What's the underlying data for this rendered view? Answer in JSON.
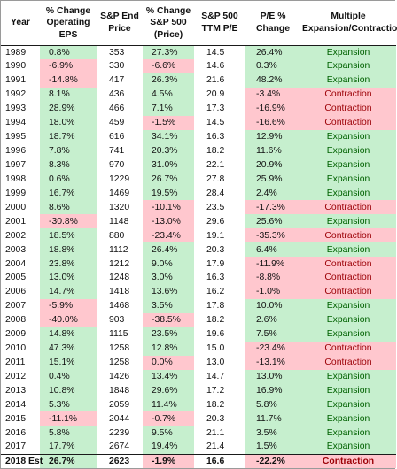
{
  "headers": {
    "year": "Year",
    "eps_change": "% Change Operating EPS",
    "sp_end_price": "S&P End Price",
    "sp_change": "% Change S&P 500 (Price)",
    "ttm_pe": "S&P 500 TTM P/E",
    "pe_change": "P/E % Change",
    "multiple": "Multiple Expansion/Contraction"
  },
  "rows": [
    {
      "year": "1989",
      "eps": "0.8%",
      "price": "353",
      "sp": "27.3%",
      "pe": "14.5",
      "pechg": "26.4%",
      "mult": "Expansion",
      "eps_s": "pos",
      "sp_s": "pos",
      "pechg_s": "pos",
      "mult_s": "pos"
    },
    {
      "year": "1990",
      "eps": "-6.9%",
      "price": "330",
      "sp": "-6.6%",
      "pe": "14.6",
      "pechg": "0.3%",
      "mult": "Expansion",
      "eps_s": "neg",
      "sp_s": "neg",
      "pechg_s": "pos",
      "mult_s": "pos"
    },
    {
      "year": "1991",
      "eps": "-14.8%",
      "price": "417",
      "sp": "26.3%",
      "pe": "21.6",
      "pechg": "48.2%",
      "mult": "Expansion",
      "eps_s": "neg",
      "sp_s": "pos",
      "pechg_s": "pos",
      "mult_s": "pos"
    },
    {
      "year": "1992",
      "eps": "8.1%",
      "price": "436",
      "sp": "4.5%",
      "pe": "20.9",
      "pechg": "-3.4%",
      "mult": "Contraction",
      "eps_s": "pos",
      "sp_s": "pos",
      "pechg_s": "neg",
      "mult_s": "neg"
    },
    {
      "year": "1993",
      "eps": "28.9%",
      "price": "466",
      "sp": "7.1%",
      "pe": "17.3",
      "pechg": "-16.9%",
      "mult": "Contraction",
      "eps_s": "pos",
      "sp_s": "pos",
      "pechg_s": "neg",
      "mult_s": "neg"
    },
    {
      "year": "1994",
      "eps": "18.0%",
      "price": "459",
      "sp": "-1.5%",
      "pe": "14.5",
      "pechg": "-16.6%",
      "mult": "Contraction",
      "eps_s": "pos",
      "sp_s": "neg",
      "pechg_s": "neg",
      "mult_s": "neg"
    },
    {
      "year": "1995",
      "eps": "18.7%",
      "price": "616",
      "sp": "34.1%",
      "pe": "16.3",
      "pechg": "12.9%",
      "mult": "Expansion",
      "eps_s": "pos",
      "sp_s": "pos",
      "pechg_s": "pos",
      "mult_s": "pos"
    },
    {
      "year": "1996",
      "eps": "7.8%",
      "price": "741",
      "sp": "20.3%",
      "pe": "18.2",
      "pechg": "11.6%",
      "mult": "Expansion",
      "eps_s": "pos",
      "sp_s": "pos",
      "pechg_s": "pos",
      "mult_s": "pos"
    },
    {
      "year": "1997",
      "eps": "8.3%",
      "price": "970",
      "sp": "31.0%",
      "pe": "22.1",
      "pechg": "20.9%",
      "mult": "Expansion",
      "eps_s": "pos",
      "sp_s": "pos",
      "pechg_s": "pos",
      "mult_s": "pos"
    },
    {
      "year": "1998",
      "eps": "0.6%",
      "price": "1229",
      "sp": "26.7%",
      "pe": "27.8",
      "pechg": "25.9%",
      "mult": "Expansion",
      "eps_s": "pos",
      "sp_s": "pos",
      "pechg_s": "pos",
      "mult_s": "pos"
    },
    {
      "year": "1999",
      "eps": "16.7%",
      "price": "1469",
      "sp": "19.5%",
      "pe": "28.4",
      "pechg": "2.4%",
      "mult": "Expansion",
      "eps_s": "pos",
      "sp_s": "pos",
      "pechg_s": "pos",
      "mult_s": "pos"
    },
    {
      "year": "2000",
      "eps": "8.6%",
      "price": "1320",
      "sp": "-10.1%",
      "pe": "23.5",
      "pechg": "-17.3%",
      "mult": "Contraction",
      "eps_s": "pos",
      "sp_s": "neg",
      "pechg_s": "neg",
      "mult_s": "neg"
    },
    {
      "year": "2001",
      "eps": "-30.8%",
      "price": "1148",
      "sp": "-13.0%",
      "pe": "29.6",
      "pechg": "25.6%",
      "mult": "Expansion",
      "eps_s": "neg",
      "sp_s": "neg",
      "pechg_s": "pos",
      "mult_s": "pos"
    },
    {
      "year": "2002",
      "eps": "18.5%",
      "price": "880",
      "sp": "-23.4%",
      "pe": "19.1",
      "pechg": "-35.3%",
      "mult": "Contraction",
      "eps_s": "pos",
      "sp_s": "neg",
      "pechg_s": "neg",
      "mult_s": "neg"
    },
    {
      "year": "2003",
      "eps": "18.8%",
      "price": "1112",
      "sp": "26.4%",
      "pe": "20.3",
      "pechg": "6.4%",
      "mult": "Expansion",
      "eps_s": "pos",
      "sp_s": "pos",
      "pechg_s": "pos",
      "mult_s": "pos"
    },
    {
      "year": "2004",
      "eps": "23.8%",
      "price": "1212",
      "sp": "9.0%",
      "pe": "17.9",
      "pechg": "-11.9%",
      "mult": "Contraction",
      "eps_s": "pos",
      "sp_s": "pos",
      "pechg_s": "neg",
      "mult_s": "neg"
    },
    {
      "year": "2005",
      "eps": "13.0%",
      "price": "1248",
      "sp": "3.0%",
      "pe": "16.3",
      "pechg": "-8.8%",
      "mult": "Contraction",
      "eps_s": "pos",
      "sp_s": "pos",
      "pechg_s": "neg",
      "mult_s": "neg"
    },
    {
      "year": "2006",
      "eps": "14.7%",
      "price": "1418",
      "sp": "13.6%",
      "pe": "16.2",
      "pechg": "-1.0%",
      "mult": "Contraction",
      "eps_s": "pos",
      "sp_s": "pos",
      "pechg_s": "neg",
      "mult_s": "neg"
    },
    {
      "year": "2007",
      "eps": "-5.9%",
      "price": "1468",
      "sp": "3.5%",
      "pe": "17.8",
      "pechg": "10.0%",
      "mult": "Expansion",
      "eps_s": "neg",
      "sp_s": "pos",
      "pechg_s": "pos",
      "mult_s": "pos"
    },
    {
      "year": "2008",
      "eps": "-40.0%",
      "price": "903",
      "sp": "-38.5%",
      "pe": "18.2",
      "pechg": "2.6%",
      "mult": "Expansion",
      "eps_s": "neg",
      "sp_s": "neg",
      "pechg_s": "pos",
      "mult_s": "pos"
    },
    {
      "year": "2009",
      "eps": "14.8%",
      "price": "1115",
      "sp": "23.5%",
      "pe": "19.6",
      "pechg": "7.5%",
      "mult": "Expansion",
      "eps_s": "pos",
      "sp_s": "pos",
      "pechg_s": "pos",
      "mult_s": "pos"
    },
    {
      "year": "2010",
      "eps": "47.3%",
      "price": "1258",
      "sp": "12.8%",
      "pe": "15.0",
      "pechg": "-23.4%",
      "mult": "Contraction",
      "eps_s": "pos",
      "sp_s": "pos",
      "pechg_s": "neg",
      "mult_s": "neg"
    },
    {
      "year": "2011",
      "eps": "15.1%",
      "price": "1258",
      "sp": "0.0%",
      "pe": "13.0",
      "pechg": "-13.1%",
      "mult": "Contraction",
      "eps_s": "pos",
      "sp_s": "neg",
      "pechg_s": "neg",
      "mult_s": "neg"
    },
    {
      "year": "2012",
      "eps": "0.4%",
      "price": "1426",
      "sp": "13.4%",
      "pe": "14.7",
      "pechg": "13.0%",
      "mult": "Expansion",
      "eps_s": "pos",
      "sp_s": "pos",
      "pechg_s": "pos",
      "mult_s": "pos"
    },
    {
      "year": "2013",
      "eps": "10.8%",
      "price": "1848",
      "sp": "29.6%",
      "pe": "17.2",
      "pechg": "16.9%",
      "mult": "Expansion",
      "eps_s": "pos",
      "sp_s": "pos",
      "pechg_s": "pos",
      "mult_s": "pos"
    },
    {
      "year": "2014",
      "eps": "5.3%",
      "price": "2059",
      "sp": "11.4%",
      "pe": "18.2",
      "pechg": "5.8%",
      "mult": "Expansion",
      "eps_s": "pos",
      "sp_s": "pos",
      "pechg_s": "pos",
      "mult_s": "pos"
    },
    {
      "year": "2015",
      "eps": "-11.1%",
      "price": "2044",
      "sp": "-0.7%",
      "pe": "20.3",
      "pechg": "11.7%",
      "mult": "Expansion",
      "eps_s": "neg",
      "sp_s": "neg",
      "pechg_s": "pos",
      "mult_s": "pos"
    },
    {
      "year": "2016",
      "eps": "5.8%",
      "price": "2239",
      "sp": "9.5%",
      "pe": "21.1",
      "pechg": "3.5%",
      "mult": "Expansion",
      "eps_s": "pos",
      "sp_s": "pos",
      "pechg_s": "pos",
      "mult_s": "pos"
    },
    {
      "year": "2017",
      "eps": "17.7%",
      "price": "2674",
      "sp": "19.4%",
      "pe": "21.4",
      "pechg": "1.5%",
      "mult": "Expansion",
      "eps_s": "pos",
      "sp_s": "pos",
      "pechg_s": "pos",
      "mult_s": "pos"
    },
    {
      "year": "2018 Est",
      "eps": "26.7%",
      "price": "2623",
      "sp": "-1.9%",
      "pe": "16.6",
      "pechg": "-22.2%",
      "mult": "Contraction",
      "eps_s": "pos",
      "sp_s": "neg",
      "pechg_s": "neg",
      "mult_s": "neg",
      "estimate": true
    }
  ],
  "colors": {
    "positive_fill": "#c6efce",
    "negative_fill": "#ffc7ce",
    "positive_text": "#006100",
    "negative_text": "#9c0006"
  }
}
